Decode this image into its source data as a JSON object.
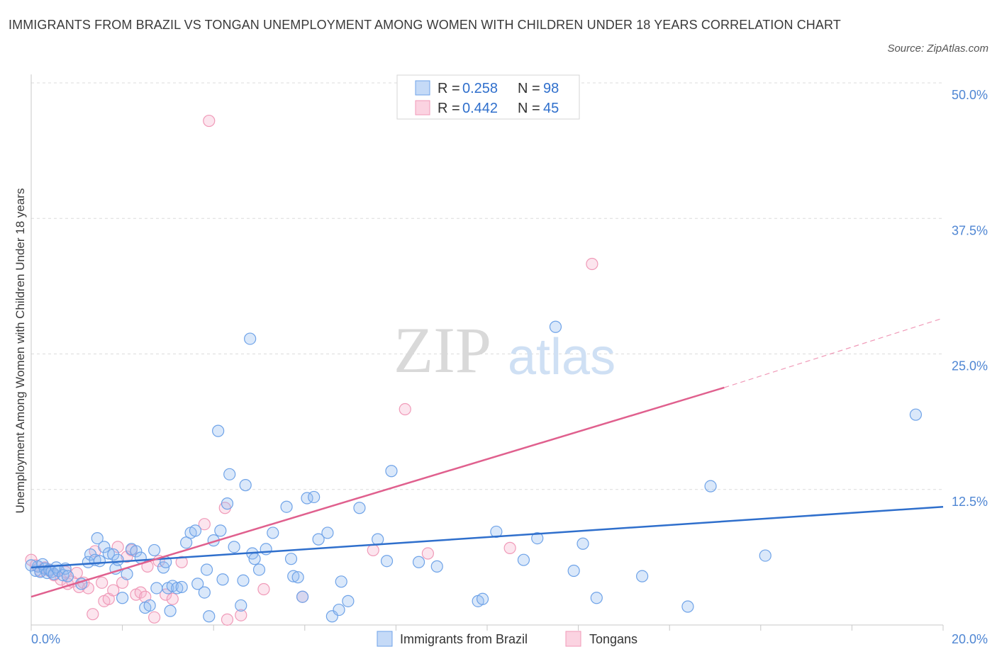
{
  "title": "IMMIGRANTS FROM BRAZIL VS TONGAN UNEMPLOYMENT AMONG WOMEN WITH CHILDREN UNDER 18 YEARS CORRELATION CHART",
  "source": "Source: ZipAtlas.com",
  "watermark": {
    "zip": "ZIP",
    "atlas": "atlas"
  },
  "colors": {
    "brazil": "#6fa3e8",
    "brazil_line": "#2f6fcc",
    "tongan": "#f09ab8",
    "tongan_line": "#e0608e",
    "axis_text": "#4f86d3"
  },
  "stats": [
    {
      "r_label": "R = ",
      "r": "0.258",
      "n_label": "N = ",
      "n": "98"
    },
    {
      "r_label": "R = ",
      "r": "0.442",
      "n_label": "N = ",
      "n": "45"
    }
  ],
  "chart_data": {
    "type": "scatter",
    "title": "IMMIGRANTS FROM BRAZIL VS TONGAN UNEMPLOYMENT AMONG WOMEN WITH CHILDREN UNDER 18 YEARS CORRELATION CHART",
    "xlabel": "",
    "ylabel": "Unemployment Among Women with Children Under 18 years",
    "xlim": [
      0,
      20
    ],
    "ylim": [
      0,
      50
    ],
    "x_tick_labels": [
      "0.0%",
      "20.0%"
    ],
    "y_ticks": [
      12.5,
      25,
      37.5,
      50
    ],
    "y_tick_labels": [
      "12.5%",
      "25.0%",
      "37.5%",
      "50.0%"
    ],
    "grid": "horizontal dashed",
    "legend_position": "bottom-center",
    "series": [
      {
        "name": "Immigrants from Brazil",
        "color": "#6fa3e8",
        "trend": {
          "x": [
            0,
            20
          ],
          "y": [
            5.3,
            10.9
          ],
          "dashed_from": null
        },
        "points": [
          [
            0.1,
            5.0
          ],
          [
            0.15,
            5.4
          ],
          [
            0.2,
            4.9
          ],
          [
            0.25,
            5.6
          ],
          [
            0.3,
            5.2
          ],
          [
            0.35,
            4.8
          ],
          [
            0.4,
            5.1
          ],
          [
            0.45,
            4.9
          ],
          [
            0.5,
            4.7
          ],
          [
            0.55,
            5.3
          ],
          [
            0.6,
            5.0
          ],
          [
            0.7,
            4.6
          ],
          [
            0.75,
            5.2
          ],
          [
            0.8,
            4.5
          ],
          [
            1.1,
            3.8
          ],
          [
            1.25,
            5.8
          ],
          [
            1.3,
            6.5
          ],
          [
            1.4,
            6.0
          ],
          [
            1.45,
            8.0
          ],
          [
            1.5,
            5.9
          ],
          [
            1.6,
            7.2
          ],
          [
            1.7,
            6.6
          ],
          [
            1.8,
            6.5
          ],
          [
            1.85,
            5.2
          ],
          [
            1.9,
            6.0
          ],
          [
            2.0,
            2.5
          ],
          [
            2.1,
            4.7
          ],
          [
            2.2,
            7.0
          ],
          [
            2.3,
            6.8
          ],
          [
            2.4,
            6.2
          ],
          [
            2.5,
            1.6
          ],
          [
            2.6,
            1.8
          ],
          [
            2.7,
            6.9
          ],
          [
            2.75,
            3.4
          ],
          [
            2.9,
            5.3
          ],
          [
            2.95,
            5.8
          ],
          [
            3.0,
            3.4
          ],
          [
            3.05,
            1.3
          ],
          [
            3.1,
            3.6
          ],
          [
            3.2,
            3.4
          ],
          [
            3.3,
            3.5
          ],
          [
            3.4,
            7.6
          ],
          [
            3.5,
            8.5
          ],
          [
            3.6,
            8.7
          ],
          [
            3.65,
            3.8
          ],
          [
            3.8,
            3.0
          ],
          [
            3.85,
            5.1
          ],
          [
            3.9,
            0.8
          ],
          [
            4.0,
            7.8
          ],
          [
            4.1,
            17.9
          ],
          [
            4.15,
            8.7
          ],
          [
            4.2,
            4.2
          ],
          [
            4.3,
            11.2
          ],
          [
            4.35,
            13.9
          ],
          [
            4.45,
            7.2
          ],
          [
            4.6,
            1.8
          ],
          [
            4.65,
            4.1
          ],
          [
            4.7,
            12.9
          ],
          [
            4.8,
            26.4
          ],
          [
            4.85,
            6.6
          ],
          [
            4.9,
            6.1
          ],
          [
            5.0,
            5.1
          ],
          [
            5.15,
            7.0
          ],
          [
            5.3,
            8.5
          ],
          [
            5.6,
            10.9
          ],
          [
            5.7,
            6.1
          ],
          [
            5.75,
            4.5
          ],
          [
            5.85,
            4.4
          ],
          [
            5.95,
            2.6
          ],
          [
            6.05,
            11.7
          ],
          [
            6.2,
            11.8
          ],
          [
            6.3,
            7.9
          ],
          [
            6.5,
            8.5
          ],
          [
            6.6,
            0.8
          ],
          [
            6.75,
            1.4
          ],
          [
            6.8,
            4.0
          ],
          [
            6.95,
            2.2
          ],
          [
            7.2,
            10.8
          ],
          [
            7.6,
            7.9
          ],
          [
            7.8,
            5.9
          ],
          [
            7.9,
            14.2
          ],
          [
            8.5,
            5.8
          ],
          [
            8.9,
            5.4
          ],
          [
            9.8,
            2.2
          ],
          [
            9.9,
            2.4
          ],
          [
            10.2,
            8.6
          ],
          [
            10.8,
            6.0
          ],
          [
            11.1,
            8.0
          ],
          [
            11.5,
            27.5
          ],
          [
            11.9,
            5.0
          ],
          [
            12.1,
            7.5
          ],
          [
            12.4,
            2.5
          ],
          [
            13.4,
            4.5
          ],
          [
            14.4,
            1.7
          ],
          [
            14.9,
            12.8
          ],
          [
            16.1,
            6.4
          ],
          [
            19.4,
            19.4
          ],
          [
            0.0,
            5.5
          ]
        ]
      },
      {
        "name": "Tongans",
        "color": "#f09ab8",
        "trend": {
          "x": [
            0,
            15.2
          ],
          "y": [
            2.6,
            21.9
          ],
          "dashed_to": [
            20,
            28.3
          ]
        },
        "points": [
          [
            0.0,
            6.0
          ],
          [
            0.1,
            5.5
          ],
          [
            0.2,
            5.0
          ],
          [
            0.3,
            5.3
          ],
          [
            0.5,
            4.6
          ],
          [
            0.65,
            4.2
          ],
          [
            0.8,
            3.8
          ],
          [
            0.9,
            4.0
          ],
          [
            1.0,
            4.8
          ],
          [
            1.05,
            3.5
          ],
          [
            1.15,
            3.9
          ],
          [
            1.25,
            3.4
          ],
          [
            1.35,
            1.0
          ],
          [
            1.4,
            6.8
          ],
          [
            1.55,
            3.9
          ],
          [
            1.6,
            2.2
          ],
          [
            1.7,
            2.4
          ],
          [
            1.8,
            3.2
          ],
          [
            1.9,
            7.2
          ],
          [
            2.0,
            3.9
          ],
          [
            2.1,
            6.3
          ],
          [
            2.2,
            6.9
          ],
          [
            2.3,
            2.8
          ],
          [
            2.4,
            3.0
          ],
          [
            2.5,
            2.6
          ],
          [
            2.55,
            5.4
          ],
          [
            2.7,
            0.7
          ],
          [
            2.8,
            5.9
          ],
          [
            2.95,
            2.8
          ],
          [
            3.1,
            2.4
          ],
          [
            3.3,
            5.8
          ],
          [
            3.8,
            9.3
          ],
          [
            3.9,
            46.5
          ],
          [
            4.25,
            10.8
          ],
          [
            4.3,
            0.5
          ],
          [
            4.6,
            0.9
          ],
          [
            5.1,
            3.3
          ],
          [
            5.95,
            2.6
          ],
          [
            7.5,
            6.9
          ],
          [
            8.2,
            19.9
          ],
          [
            8.7,
            6.6
          ],
          [
            10.5,
            7.1
          ],
          [
            12.3,
            33.3
          ],
          [
            0.4,
            5.0
          ],
          [
            0.75,
            4.9
          ]
        ]
      }
    ]
  }
}
